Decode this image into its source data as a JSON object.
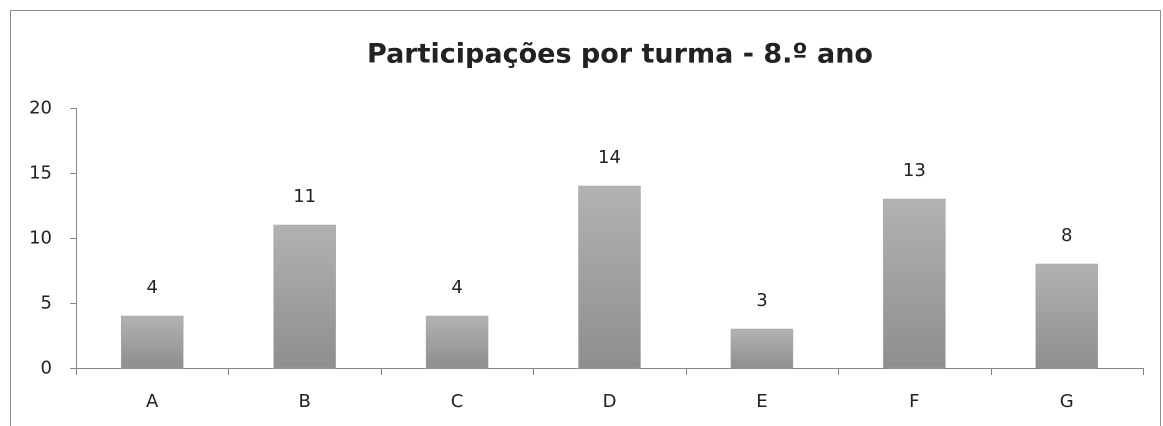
{
  "chart_data": {
    "type": "bar",
    "title": "Participações por turma - 8.º ano",
    "categories": [
      "A",
      "B",
      "C",
      "D",
      "E",
      "F",
      "G"
    ],
    "values": [
      4,
      11,
      4,
      14,
      3,
      13,
      8
    ],
    "color": "#a6a6a6",
    "ylim": [
      0,
      20
    ],
    "yticks": [
      0,
      5,
      10,
      15,
      20
    ],
    "grid": false
  }
}
